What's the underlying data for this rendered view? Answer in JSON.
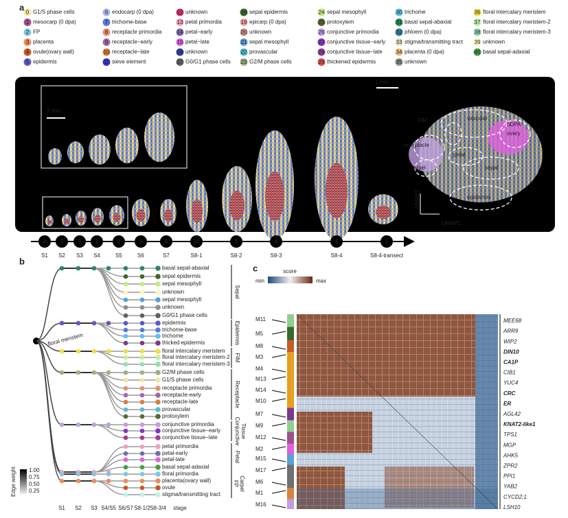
{
  "panel_labels": [
    "a",
    "b",
    "c"
  ],
  "legend": [
    {
      "id": "0",
      "label": "G1/S phase cells",
      "color": "#f3e6a4"
    },
    {
      "id": "1",
      "label": "mesocarp (0 dpa)",
      "color": "#a0508a"
    },
    {
      "id": "2",
      "label": "FP",
      "color": "#7fc8e0"
    },
    {
      "id": "3",
      "label": "placenta",
      "color": "#f08a5a"
    },
    {
      "id": "4",
      "label": "ovule(ovary wall)",
      "color": "#c85a28"
    },
    {
      "id": "5",
      "label": "epidermis",
      "color": "#5a5ac8"
    },
    {
      "id": "6",
      "label": "endocarp (0 dpa)",
      "color": "#a8b8e8"
    },
    {
      "id": "7",
      "label": "trichome-base",
      "color": "#5a78d8"
    },
    {
      "id": "8",
      "label": "receptacle primordia",
      "color": "#e89070"
    },
    {
      "id": "9",
      "label": "receptacle−early",
      "color": "#a06aa8"
    },
    {
      "id": "10",
      "label": "receptacle−late",
      "color": "#d88040"
    },
    {
      "id": "11",
      "label": "sieve element",
      "color": "#3a30d0"
    },
    {
      "id": "12",
      "label": "unknown",
      "color": "#d03070"
    },
    {
      "id": "13",
      "label": "petal primordia",
      "color": "#f0a0c0"
    },
    {
      "id": "14",
      "label": "petal−early",
      "color": "#7a6aa8"
    },
    {
      "id": "15",
      "label": "petal−late",
      "color": "#e060e0"
    },
    {
      "id": "16",
      "label": "unknown",
      "color": "#3040a0"
    },
    {
      "id": "17",
      "label": "G0/G1 phase cells",
      "color": "#606060"
    },
    {
      "id": "18",
      "label": "sepal epidermis",
      "color": "#3a6a2a"
    },
    {
      "id": "19",
      "label": "epicarp (0 dpa)",
      "color": "#f0a8a0"
    },
    {
      "id": "20",
      "label": "unknown",
      "color": "#c89080"
    },
    {
      "id": "21",
      "label": "sepal mesophyll",
      "color": "#5aa0d8"
    },
    {
      "id": "22",
      "label": "provascular",
      "color": "#50c0d0"
    },
    {
      "id": "23",
      "label": "G2/M phase cells",
      "color": "#a0b080"
    },
    {
      "id": "24",
      "label": "sepal mesophyll",
      "color": "#c8e880"
    },
    {
      "id": "25",
      "label": "protoxylem",
      "color": "#5a6a30"
    },
    {
      "id": "26",
      "label": "conjunctive primordia",
      "color": "#c0a0e0"
    },
    {
      "id": "27",
      "label": "conjunctive tissue−early",
      "color": "#8a30c0"
    },
    {
      "id": "28",
      "label": "conjunctive tissue−late",
      "color": "#9a40a0"
    },
    {
      "id": "29",
      "label": "thickened epidermis",
      "color": "#e05050"
    },
    {
      "id": "30",
      "label": "trichome",
      "color": "#60c0f0"
    },
    {
      "id": "31",
      "label": "basal sepal-abaxial",
      "color": "#2a8a5a"
    },
    {
      "id": "32",
      "label": "phloem (0 dpa)",
      "color": "#3080a0"
    },
    {
      "id": "33",
      "label": "stigma/transmitting tract",
      "color": "#e8e0d0"
    },
    {
      "id": "34",
      "label": "placenta (0 dpa)",
      "color": "#f0c080"
    },
    {
      "id": "35",
      "label": "unknown",
      "color": "#909090"
    },
    {
      "id": "36",
      "label": "floral intercalary meristem",
      "color": "#f0e040"
    },
    {
      "id": "37",
      "label": "floral intercalary meristem-2",
      "color": "#c0f0a0"
    },
    {
      "id": "38",
      "label": "floral intercalary meristem-3",
      "color": "#90e0b0"
    },
    {
      "id": "39",
      "label": "unknown",
      "color": "#f8f8c0"
    },
    {
      "id": "40",
      "label": "basal sepal-adaxial",
      "color": "#40a040"
    }
  ],
  "panel_a": {
    "scale_main": "1 mm",
    "scale_inset": "2 mm",
    "umap_labels": [
      "FIM",
      "vascular",
      "0DPA",
      "ovary",
      "receptacle",
      "petal",
      "carpel",
      "sepal",
      "epidermis"
    ],
    "umap_axes": [
      "UMAP1",
      "UMAP2"
    ],
    "stages": [
      {
        "count": "2",
        "name": "S1"
      },
      {
        "count": "3",
        "name": "S2"
      },
      {
        "count": "3",
        "name": "S3"
      },
      {
        "count": "2",
        "name": "S4"
      },
      {
        "count": "2",
        "name": "S5"
      },
      {
        "count": "5",
        "name": "S6"
      },
      {
        "count": "5",
        "name": "S7"
      },
      {
        "count": "10",
        "name": "S8-1"
      },
      {
        "count": "8",
        "name": "S8-2"
      },
      {
        "count": "4",
        "name": "S8-3"
      },
      {
        "count": "4",
        "name": "S8-4"
      },
      {
        "count": "1",
        "name": "S8-4-transect"
      }
    ]
  },
  "panel_b": {
    "root": "floral meristem",
    "leaves": [
      {
        "label": "basal sepal-abaxial",
        "color": "#2a8a5a"
      },
      {
        "label": "sepal epidermis",
        "color": "#3a6a2a"
      },
      {
        "label": "sepal mesophyll",
        "color": "#c8e880"
      },
      {
        "label": "unknown",
        "color": "#f8f8c0"
      },
      {
        "label": "sepal mesophyll",
        "color": "#5aa0d8"
      },
      {
        "label": "unknown",
        "color": "#909090"
      },
      {
        "label": "G0/G1 phase cells",
        "color": "#606060"
      },
      {
        "label": "epidermis",
        "color": "#5a5ac8"
      },
      {
        "label": "trichome-base",
        "color": "#5a78d8"
      },
      {
        "label": "trichome",
        "color": "#60c0f0"
      },
      {
        "label": "thicked epidermis",
        "color": "#7a3a8a"
      },
      {
        "label": "floral intercalary meristem",
        "color": "#f0e040"
      },
      {
        "label": "floral intercalary meristem-2",
        "color": "#c0f0a0"
      },
      {
        "label": "floral intercalary meristem-3",
        "color": "#90e0b0"
      },
      {
        "label": "G2/M phase cells",
        "color": "#a0b080"
      },
      {
        "label": "G1/S phase cells",
        "color": "#f3e6a4"
      },
      {
        "label": "receptacle primordia",
        "color": "#e89070"
      },
      {
        "label": "receptacle-early",
        "color": "#a06aa8"
      },
      {
        "label": "receptacle-late",
        "color": "#d88040"
      },
      {
        "label": "provascular",
        "color": "#50c0d0"
      },
      {
        "label": "protoxylem",
        "color": "#5a6a30"
      },
      {
        "label": "conjunctive primordia",
        "color": "#c0a0e0"
      },
      {
        "label": "conjunctive tissue−early",
        "color": "#8a30c0"
      },
      {
        "label": "conjunctive tissue−late",
        "color": "#9a40a0"
      },
      {
        "label": "petal primordia",
        "color": "#f0a0c0"
      },
      {
        "label": "petal-early",
        "color": "#7a6aa8"
      },
      {
        "label": "petal-late",
        "color": "#e060e0"
      },
      {
        "label": "basal sepal-adaxial",
        "color": "#40a040"
      },
      {
        "label": "floral primordia",
        "color": "#7fc8e0"
      },
      {
        "label": "placenta(ovary wall)",
        "color": "#f08a5a"
      },
      {
        "label": "ovule",
        "color": "#c85a28"
      },
      {
        "label": "stigma/transmitting tract",
        "color": "#bff0f0"
      }
    ],
    "groups": [
      [
        "Sepal"
      ],
      [
        "Epidermis"
      ],
      [
        "FIM"
      ],
      [
        "Receptacle"
      ],
      [
        "Conjunctive",
        "Tissue"
      ],
      [
        "Petal"
      ],
      [
        "FP"
      ],
      [
        "Carpel"
      ]
    ],
    "stages": [
      "S1",
      "S2",
      "S3",
      "S4/S5",
      "S6/S7",
      "S8-1/2",
      "S8-3/4",
      "stage"
    ],
    "edge_weight": {
      "title": "Edge weight",
      "ticks": [
        "1.00",
        "0.75",
        "0.50",
        "0.25"
      ]
    }
  },
  "panel_c": {
    "score": "score",
    "min": "min",
    "max": "max",
    "modules": [
      "M11",
      "M5",
      "M8",
      "M3",
      "M4",
      "M13",
      "M14",
      "M10",
      "M7",
      "M9",
      "M12",
      "M2",
      "M15",
      "M17",
      "M6",
      "M1",
      "M16"
    ],
    "genes": [
      {
        "name": "MEE68",
        "highlight": false
      },
      {
        "name": "ARR9",
        "highlight": false
      },
      {
        "name": "WIP2",
        "highlight": false
      },
      {
        "name": "DIN10",
        "highlight": true
      },
      {
        "name": "CA1P",
        "highlight": true
      },
      {
        "name": "CIB1",
        "highlight": false
      },
      {
        "name": "YUC4",
        "highlight": false
      },
      {
        "name": "CRC",
        "highlight": true
      },
      {
        "name": "ER",
        "highlight": true
      },
      {
        "name": "AGL42",
        "highlight": false
      },
      {
        "name": "KNAT2-like1",
        "highlight": true
      },
      {
        "name": "TPS1",
        "highlight": false
      },
      {
        "name": "MGP",
        "highlight": false
      },
      {
        "name": "AHK5",
        "highlight": false
      },
      {
        "name": "ZPR2",
        "highlight": false
      },
      {
        "name": "PPI1",
        "highlight": false
      },
      {
        "name": "YAB2",
        "highlight": false
      },
      {
        "name": "CYCD2;1",
        "highlight": false
      },
      {
        "name": "LSH10",
        "highlight": false
      }
    ]
  }
}
